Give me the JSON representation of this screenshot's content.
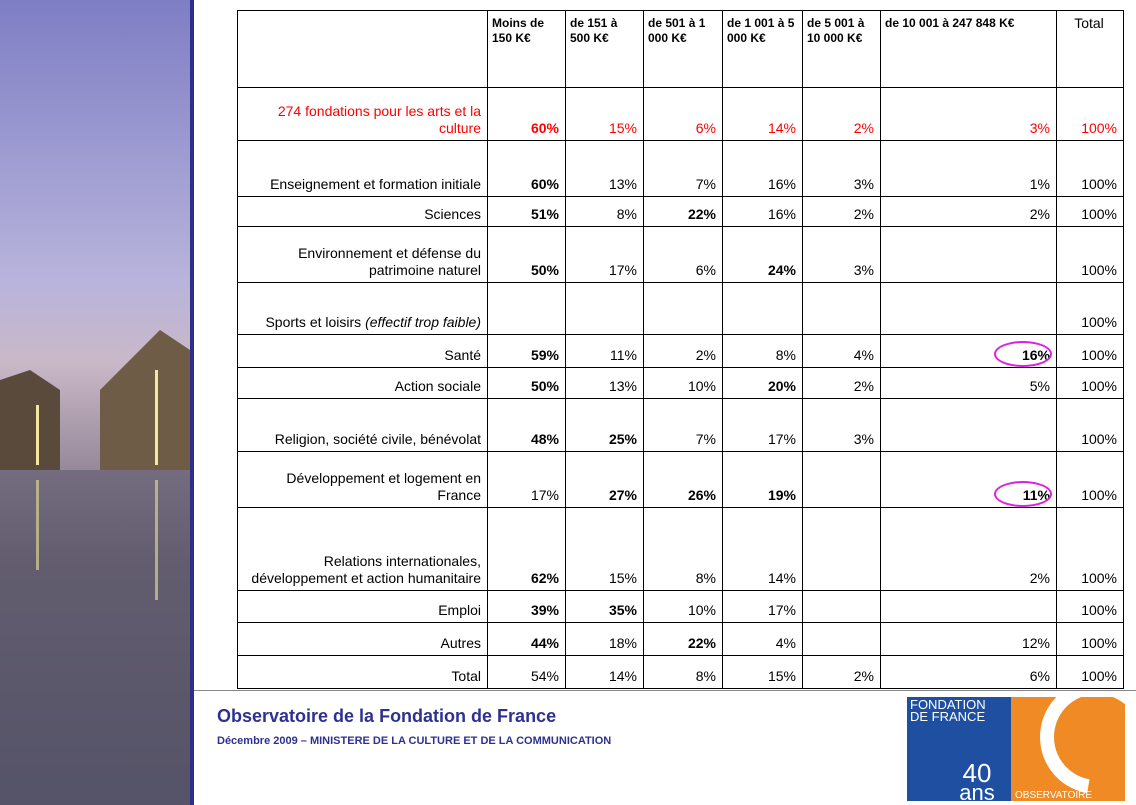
{
  "table": {
    "header": [
      null,
      "Moins de 150 K€",
      "de 151 à 500 K€",
      "de 501 à 1 000 K€",
      "de 1 001 à 5 000 K€",
      "de 5 001 à 10 000 K€",
      "de 10 001 à 247 848 K€",
      "Total"
    ],
    "rows": [
      {
        "label": "274 fondations pour les arts et la culture",
        "values": [
          "60%",
          "15%",
          "6%",
          "14%",
          "2%",
          "3%",
          "100%"
        ],
        "bold": [
          0
        ],
        "color": "#ff0000"
      },
      {
        "label": "Enseignement et formation initiale",
        "values": [
          "60%",
          "13%",
          "7%",
          "16%",
          "3%",
          "1%",
          "100%"
        ],
        "bold": [
          0
        ]
      },
      {
        "label": "Sciences",
        "values": [
          "51%",
          "8%",
          "22%",
          "16%",
          "2%",
          "2%",
          "100%"
        ],
        "bold": [
          0,
          2
        ]
      },
      {
        "label": "Environnement et défense du patrimoine naturel",
        "values": [
          "50%",
          "17%",
          "6%",
          "24%",
          "3%",
          null,
          "100%"
        ],
        "bold": [
          0,
          3
        ]
      },
      {
        "label": "Sports et loisirs",
        "note": "(effectif trop faible)",
        "values": [
          null,
          null,
          null,
          null,
          null,
          null,
          "100%"
        ],
        "bold": []
      },
      {
        "label": "Santé",
        "values": [
          "59%",
          "11%",
          "2%",
          "8%",
          "4%",
          "16%",
          "100%"
        ],
        "bold": [
          0,
          5
        ],
        "highlight": [
          5
        ]
      },
      {
        "label": "Action sociale",
        "values": [
          "50%",
          "13%",
          "10%",
          "20%",
          "2%",
          "5%",
          "100%"
        ],
        "bold": [
          0,
          3
        ]
      },
      {
        "label": "Religion, société civile, bénévolat",
        "values": [
          "48%",
          "25%",
          "7%",
          "17%",
          "3%",
          null,
          "100%"
        ],
        "bold": [
          0,
          1
        ]
      },
      {
        "label": "Développement et logement en France",
        "values": [
          "17%",
          "27%",
          "26%",
          "19%",
          null,
          "11%",
          "100%"
        ],
        "bold": [
          1,
          2,
          3,
          5
        ],
        "highlight": [
          5
        ]
      },
      {
        "label": "Relations internationales, développement et action humanitaire",
        "values": [
          "62%",
          "15%",
          "8%",
          "14%",
          null,
          "2%",
          "100%"
        ],
        "bold": [
          0
        ]
      },
      {
        "label": "Emploi",
        "values": [
          "39%",
          "35%",
          "10%",
          "17%",
          null,
          null,
          "100%"
        ],
        "bold": [
          0,
          1
        ]
      },
      {
        "label": "Autres",
        "values": [
          "44%",
          "18%",
          "22%",
          "4%",
          null,
          "12%",
          "100%"
        ],
        "bold": [
          0,
          2
        ]
      },
      {
        "label": "Total",
        "values": [
          "54%",
          "14%",
          "8%",
          "15%",
          "2%",
          "6%",
          "100%"
        ],
        "bold": []
      }
    ]
  },
  "footer": {
    "title": "Observatoire de la Fondation de France",
    "subtitle": "Décembre 2009 – MINISTERE DE LA CULTURE ET DE LA COMMUNICATION"
  },
  "logo": {
    "name": "FONDATION DE FRANCE",
    "number": "40",
    "unit": "ans",
    "caption": "OBSERVATOIRE"
  }
}
